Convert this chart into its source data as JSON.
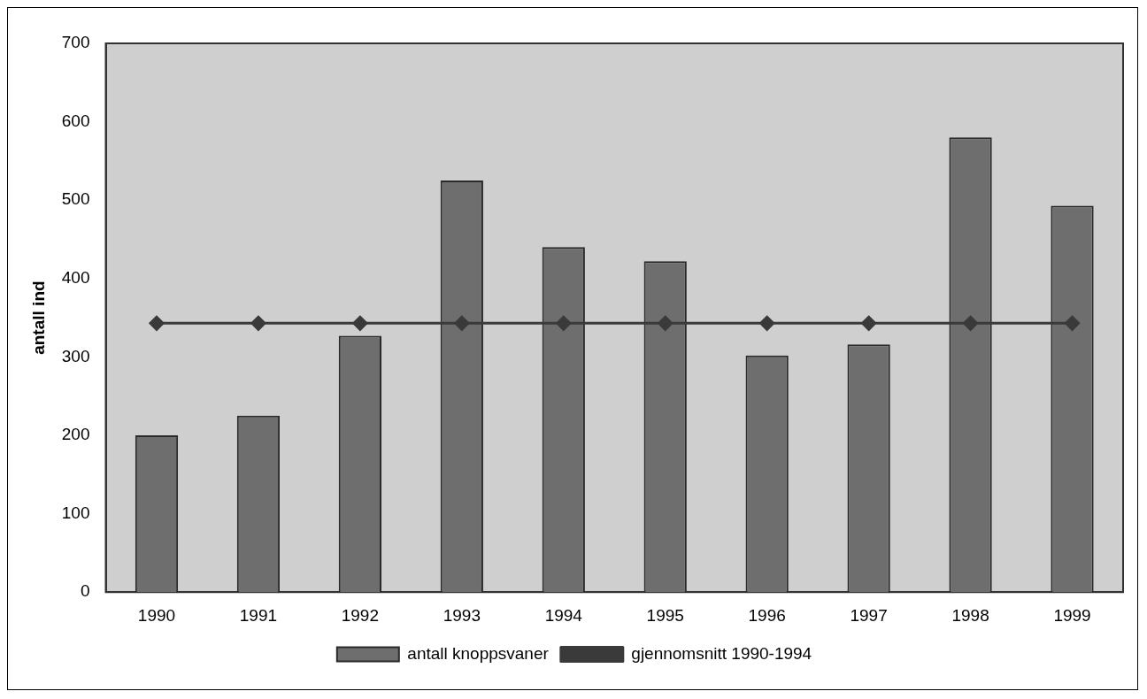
{
  "chart_data": {
    "type": "bar",
    "ylabel": "antall ind",
    "categories": [
      "1990",
      "1991",
      "1992",
      "1993",
      "1994",
      "1995",
      "1996",
      "1997",
      "1998",
      "1999"
    ],
    "series": [
      {
        "name": "antall knoppsvaner",
        "color": "#6e6e6e",
        "values": [
          200,
          225,
          327,
          525,
          440,
          422,
          302,
          316,
          580,
          493
        ]
      },
      {
        "name": "gjennomsnitt 1990-1994",
        "type": "line",
        "color": "#3a3a3a",
        "marker": "diamond",
        "values": [
          343,
          343,
          343,
          343,
          343,
          343,
          343,
          343,
          343,
          343
        ]
      }
    ],
    "ylim": [
      0,
      700
    ],
    "yticks": [
      0,
      100,
      200,
      300,
      400,
      500,
      600,
      700
    ],
    "grid": false,
    "legend": "bottom"
  }
}
